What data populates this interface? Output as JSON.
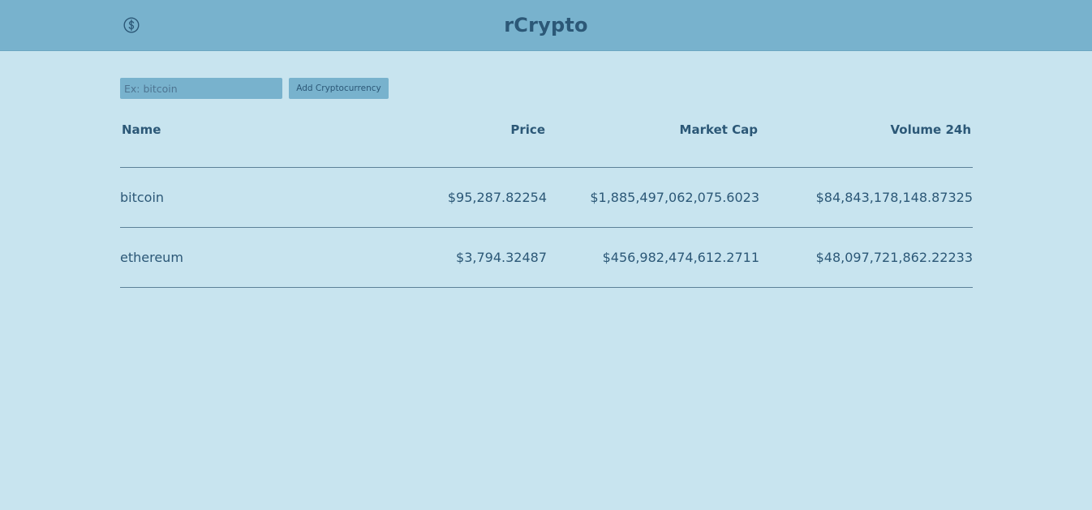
{
  "header": {
    "title": "rCrypto",
    "logo_icon": "dollar-coin-icon"
  },
  "search": {
    "placeholder": "Ex: bitcoin",
    "value": ""
  },
  "toolbar": {
    "add_label": "Add Cryptocurrency"
  },
  "table": {
    "columns": [
      "Name",
      "Price",
      "Market Cap",
      "Volume 24h"
    ],
    "rows": [
      {
        "name": "bitcoin",
        "price": "$95,287.82254",
        "market_cap": "$1,885,497,062,075.6023",
        "volume_24h": "$84,843,178,148.87325"
      },
      {
        "name": "ethereum",
        "price": "$3,794.32487",
        "market_cap": "$456,982,474,612.2711",
        "volume_24h": "$48,097,721,862.22233"
      }
    ]
  },
  "colors": {
    "background": "#c8e4ef",
    "header": "#78b2cd",
    "text": "#2c5877"
  }
}
